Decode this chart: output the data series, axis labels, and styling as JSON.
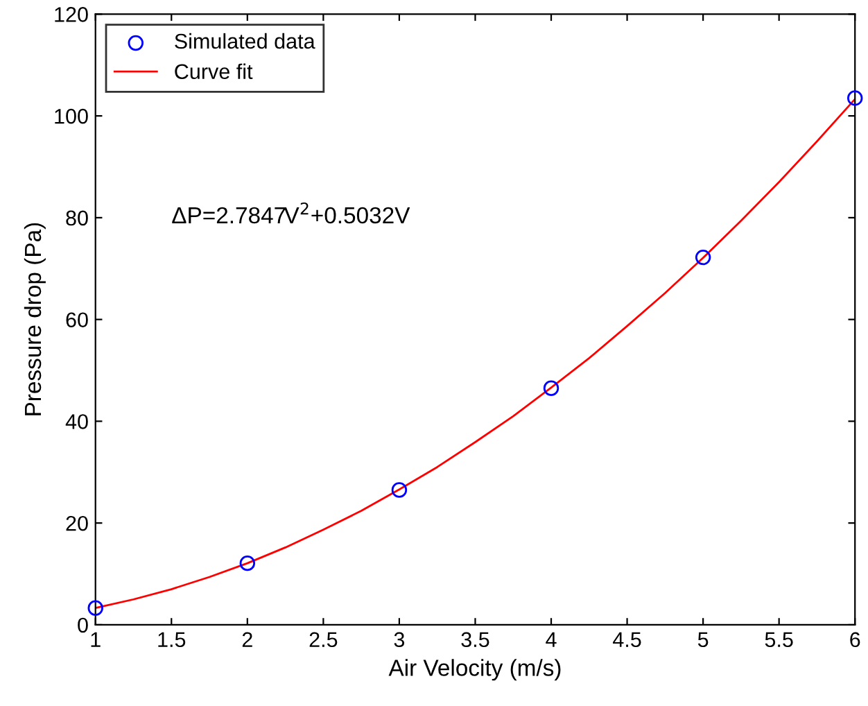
{
  "chart_data": {
    "type": "line",
    "xlabel": "Air Velocity (m/s)",
    "ylabel": "Pressure drop (Pa)",
    "xlim": [
      1,
      6
    ],
    "xticks": [
      1,
      1.5,
      2,
      2.5,
      3,
      3.5,
      4,
      4.5,
      5,
      5.5,
      6
    ],
    "ylim": [
      0,
      120
    ],
    "yticks": [
      0,
      20,
      40,
      60,
      80,
      100,
      120
    ],
    "legend": "top left",
    "grid": false,
    "annotations": [
      "ΔP=2.7847V$^{2}$+0.5032V"
    ],
    "series": [
      {
        "name": "Simulated data",
        "type": "scatter",
        "marker": "circle",
        "color": "#0000ff",
        "x": [
          1,
          2,
          3,
          4,
          5,
          6
        ],
        "values": [
          3.3,
          12.1,
          26.5,
          46.5,
          72.2,
          103.5
        ]
      },
      {
        "name": "Curve fit",
        "marker": "none",
        "line_style": "solid",
        "color": "#ff0000",
        "x": [
          1,
          1.25,
          1.5,
          1.75,
          2,
          2.25,
          2.5,
          2.75,
          3,
          3.25,
          3.5,
          3.75,
          4,
          4.25,
          4.5,
          4.75,
          5,
          5.25,
          5.5,
          5.75,
          6
        ],
        "values": [
          3.3,
          5.0,
          7.0,
          9.4,
          12.1,
          15.2,
          18.7,
          22.4,
          26.6,
          31.0,
          35.9,
          41.0,
          46.6,
          52.4,
          58.7,
          65.2,
          72.1,
          79.4,
          87.0,
          95.0,
          103.3
        ]
      }
    ]
  }
}
